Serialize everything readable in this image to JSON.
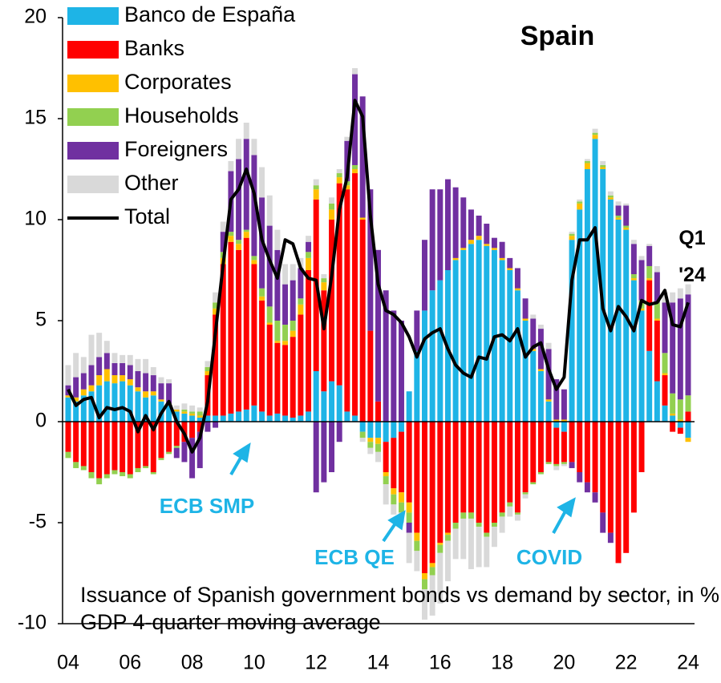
{
  "chart_data": {
    "type": "bar",
    "title": "Spain",
    "note": "Issuance of Spanish government bonds vs demand by sector, in % GDP 4-quarter moving average",
    "annotations": [
      "ECB SMP",
      "ECB QE",
      "COVID",
      "Q1 '24"
    ],
    "categories": [
      "04",
      null,
      null,
      null,
      null,
      null,
      null,
      null,
      "06",
      null,
      null,
      null,
      null,
      null,
      null,
      null,
      "08",
      null,
      null,
      null,
      null,
      null,
      null,
      null,
      "10",
      null,
      null,
      null,
      null,
      null,
      null,
      null,
      "12",
      null,
      null,
      null,
      null,
      null,
      null,
      null,
      "14",
      null,
      null,
      null,
      null,
      null,
      null,
      null,
      "16",
      null,
      null,
      null,
      null,
      null,
      null,
      null,
      "18",
      null,
      null,
      null,
      null,
      null,
      null,
      null,
      "20",
      null,
      null,
      null,
      null,
      null,
      null,
      null,
      "22",
      null,
      null,
      null,
      null,
      null,
      null,
      null,
      "24"
    ],
    "stacked": true,
    "series": [
      {
        "name": "Banco de España",
        "color": "#1eb4e6",
        "values": [
          1.2,
          1.0,
          1.3,
          1.5,
          1.8,
          2.0,
          1.9,
          2.0,
          1.8,
          1.5,
          1.2,
          1.3,
          1.0,
          0.8,
          0.5,
          0.4,
          0.3,
          0.2,
          0.3,
          0.3,
          0.3,
          0.4,
          0.5,
          0.6,
          0.8,
          0.5,
          0.3,
          0.4,
          0.3,
          0.2,
          0.3,
          0.5,
          2.5,
          1.5,
          2.0,
          1.8,
          0.5,
          0.3,
          -0.5,
          -0.8,
          -0.8,
          -1.0,
          -0.8,
          -0.5,
          1.5,
          3.5,
          5.5,
          6.5,
          7.0,
          7.5,
          8.0,
          8.5,
          8.8,
          9.0,
          8.7,
          8.5,
          8.0,
          7.5,
          6.5,
          5.0,
          3.5,
          2.5,
          1.0,
          -0.3,
          -0.5,
          9.0,
          10.5,
          12.5,
          14.0,
          12.5,
          11.0,
          10.0,
          9.5,
          7.0,
          5.5,
          3.5,
          2.0,
          0.8,
          0.3,
          -0.3,
          -0.8
        ]
      },
      {
        "name": "Banks",
        "color": "#ff0000",
        "values": [
          -1.5,
          -2.0,
          -2.2,
          -2.5,
          -2.8,
          -2.6,
          -2.4,
          -2.5,
          -2.6,
          -2.3,
          -2.2,
          -2.5,
          -1.8,
          -1.5,
          -1.2,
          -1.0,
          -0.8,
          -0.5,
          2.0,
          5.0,
          7.5,
          8.5,
          8.0,
          8.5,
          7.0,
          5.5,
          4.5,
          3.5,
          3.5,
          4.0,
          5.0,
          7.0,
          8.5,
          5.0,
          8.0,
          10.0,
          11.0,
          12.0,
          10.0,
          4.5,
          1.0,
          -1.5,
          -2.5,
          -3.0,
          -4.0,
          -5.5,
          -7.5,
          -7.0,
          -6.0,
          -5.5,
          -5.0,
          -4.5,
          -4.5,
          -5.0,
          -5.5,
          -5.0,
          -4.5,
          -4.0,
          -4.5,
          -3.5,
          -3.0,
          -2.5,
          -2.0,
          -1.8,
          -1.5,
          -2.0,
          -2.5,
          -3.0,
          -3.5,
          -4.5,
          -5.5,
          -7.0,
          -6.5,
          -4.5,
          -2.5,
          3.5,
          3.0,
          1.5,
          -0.5,
          -0.3,
          0.5
        ]
      },
      {
        "name": "Corporates",
        "color": "#ffc000",
        "values": [
          0.1,
          0.2,
          0.3,
          0.3,
          0.5,
          0.6,
          0.4,
          0.3,
          0.3,
          0.2,
          0.3,
          0.2,
          0.1,
          0.1,
          0.1,
          0.1,
          0.1,
          0.1,
          0.2,
          0.3,
          0.3,
          0.3,
          0.3,
          0.3,
          0.2,
          0.2,
          0.1,
          0.1,
          0.2,
          0.3,
          0.5,
          0.6,
          0.5,
          0.4,
          0.5,
          0.3,
          0.2,
          0.2,
          0.1,
          -0.2,
          -0.3,
          -0.2,
          -0.3,
          -0.5,
          -0.5,
          -0.4,
          -0.3,
          -0.2,
          -0.1,
          -0.1,
          0.1,
          0.1,
          0.2,
          0.2,
          0.1,
          0.1,
          0.1,
          0.1,
          0.1,
          0.1,
          0.1,
          0.1,
          0.1,
          0.1,
          0.1,
          0.2,
          0.3,
          0.3,
          0.2,
          0.1,
          0.1,
          0.1,
          0.1,
          0.1,
          0.1,
          0.1,
          0.1,
          0.1,
          0.1,
          0.1,
          -0.2
        ]
      },
      {
        "name": "Households",
        "color": "#92d050",
        "values": [
          -0.3,
          -0.3,
          -0.2,
          -0.3,
          -0.3,
          -0.2,
          -0.2,
          -0.2,
          -0.2,
          -0.2,
          -0.1,
          -0.1,
          -0.1,
          -0.1,
          -0.1,
          0.1,
          0.1,
          0.2,
          0.2,
          0.3,
          0.3,
          0.2,
          0.2,
          0.1,
          0.2,
          0.4,
          0.8,
          1.0,
          0.8,
          0.5,
          0.3,
          0.3,
          0.2,
          0.2,
          0.3,
          0.2,
          0.2,
          0.2,
          -0.3,
          -0.3,
          -0.4,
          -0.4,
          -0.5,
          -0.5,
          -0.5,
          -0.5,
          -0.5,
          -0.4,
          -0.4,
          -0.3,
          -0.3,
          -0.3,
          -0.3,
          -0.2,
          -0.2,
          -0.2,
          -0.2,
          -0.2,
          -0.1,
          -0.1,
          -0.1,
          -0.1,
          -0.1,
          -0.1,
          -0.1,
          0.1,
          0.1,
          0.1,
          0.1,
          0.1,
          0.1,
          0.1,
          0.1,
          0.2,
          0.4,
          0.6,
          0.8,
          1.0,
          1.0,
          1.0,
          0.8
        ]
      },
      {
        "name": "Foreigners",
        "color": "#7030a0",
        "values": [
          0.5,
          1.0,
          0.8,
          1.0,
          0.9,
          0.8,
          0.6,
          0.6,
          0.7,
          0.8,
          0.9,
          0.8,
          0.8,
          1.0,
          -0.5,
          -1.0,
          -2.0,
          -1.8,
          -0.5,
          -0.3,
          1.0,
          3.0,
          4.0,
          4.5,
          5.0,
          4.5,
          4.0,
          3.5,
          2.0,
          2.0,
          1.5,
          0.5,
          -3.5,
          -3.0,
          -2.5,
          -1.0,
          2.0,
          4.5,
          6.0,
          7.0,
          7.5,
          6.5,
          5.5,
          5.0,
          -0.5,
          2.0,
          3.5,
          5.0,
          4.5,
          4.5,
          3.5,
          2.5,
          1.5,
          1.0,
          1.0,
          0.5,
          0.8,
          0.5,
          1.0,
          1.0,
          1.5,
          2.0,
          2.5,
          2.0,
          1.5,
          -0.3,
          -0.5,
          -0.5,
          -0.5,
          -1.0,
          -0.5,
          0.5,
          1.0,
          1.5,
          2.0,
          1.0,
          1.5,
          2.5,
          4.5,
          5.0,
          5.0
        ]
      },
      {
        "name": "Other",
        "color": "#d9d9d9",
        "values": [
          1.0,
          1.2,
          0.8,
          1.5,
          1.2,
          0.6,
          0.5,
          0.4,
          0.5,
          0.6,
          0.7,
          0.4,
          0.3,
          0.2,
          0.2,
          0.3,
          0.3,
          0.2,
          0.3,
          0.5,
          0.5,
          0.5,
          1.0,
          0.8,
          0.8,
          1.5,
          1.5,
          1.0,
          1.0,
          0.8,
          0.5,
          0.3,
          0.3,
          0.2,
          0.3,
          0.2,
          0.2,
          0.3,
          -0.2,
          -0.3,
          -0.5,
          -1.0,
          -0.5,
          -0.5,
          -1.5,
          -1.0,
          -1.5,
          -2.0,
          -2.5,
          -2.0,
          -1.5,
          -2.0,
          -2.5,
          -2.0,
          -1.5,
          -1.0,
          -0.8,
          -0.5,
          -0.3,
          -0.2,
          0.2,
          0.2,
          0.3,
          -0.2,
          -0.1,
          0.1,
          0.1,
          0.1,
          0.2,
          0.2,
          0.2,
          0.2,
          0.1,
          0.2,
          0.2,
          0.1,
          0.3,
          0.5,
          0.5,
          0.5,
          0.5
        ]
      },
      {
        "name": "Total",
        "color": "#000000",
        "type": "line",
        "values": [
          1.6,
          0.8,
          1.1,
          1.2,
          0.2,
          0.7,
          0.6,
          0.7,
          0.5,
          -0.5,
          0.3,
          -0.4,
          0.4,
          1.0,
          0,
          -0.6,
          -1.5,
          -0.8,
          1.0,
          4.4,
          7.8,
          11,
          11.5,
          12.5,
          11.3,
          9.0,
          8.0,
          7.1,
          9.0,
          8.8,
          7.6,
          7.1,
          7.0,
          4.6,
          7.2,
          10.5,
          12.1,
          15.9,
          15.1,
          10.2,
          6.8,
          5.5,
          5.3,
          4.9,
          4.2,
          3.2,
          4.1,
          4.4,
          4.6,
          3.6,
          2.8,
          2.4,
          2.2,
          3.2,
          3.1,
          4.2,
          4.3,
          4.0,
          4.6,
          3.2,
          3.7,
          3.9,
          2.6,
          1.6,
          2.2,
          7.0,
          9.0,
          9.0,
          9.6,
          5.6,
          4.5,
          5.7,
          5.2,
          4.5,
          6.0,
          5.8,
          5.9,
          6.5,
          4.8,
          4.7,
          5.9
        ]
      }
    ],
    "ylim": [
      -10,
      20
    ],
    "yticks": [
      -10,
      -5,
      0,
      5,
      10,
      15,
      20
    ],
    "legend": "top-left"
  }
}
